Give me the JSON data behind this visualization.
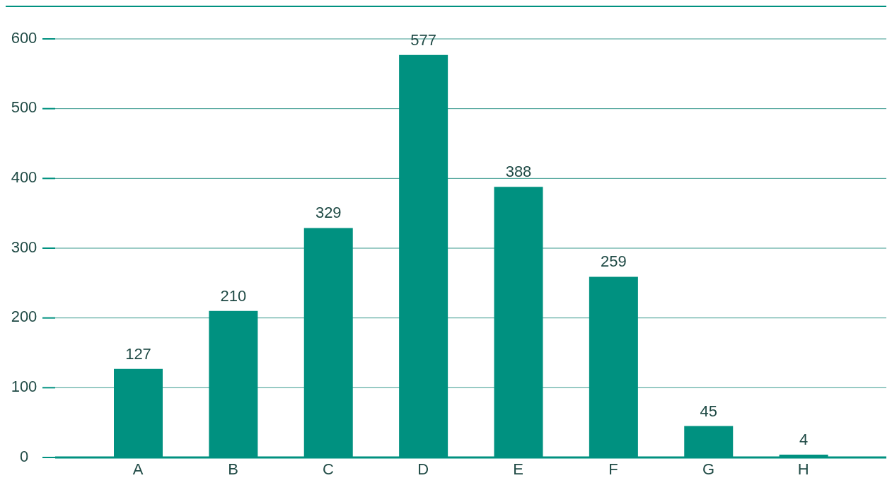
{
  "chart_data": {
    "type": "bar",
    "categories": [
      "A",
      "B",
      "C",
      "D",
      "E",
      "F",
      "G",
      "H"
    ],
    "values": [
      127,
      210,
      329,
      577,
      388,
      259,
      45,
      4
    ],
    "color": "#009180",
    "ylim": [
      0,
      600
    ],
    "yticks": [
      0,
      100,
      200,
      300,
      400,
      500,
      600
    ],
    "grid": "y",
    "data_labels": true
  }
}
